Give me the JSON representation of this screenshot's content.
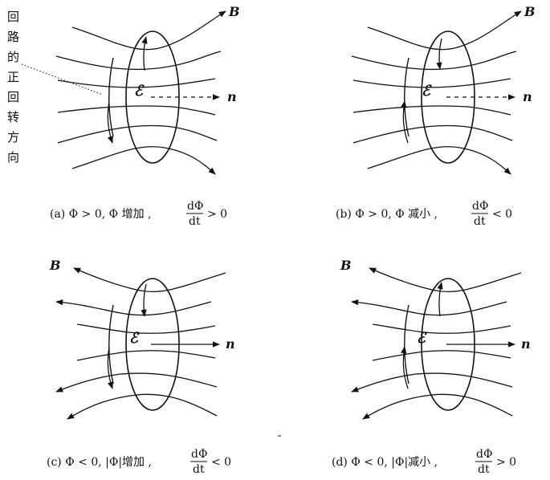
{
  "side_label": [
    "回",
    "路",
    "的",
    "正",
    "回",
    "转",
    "方",
    "向"
  ],
  "panels": [
    {
      "id": "a",
      "b_label": "B",
      "n_label": "n",
      "emf_label": "ℰ",
      "caption_prefix": "(a) Φ > 0, Φ 增加 ,",
      "frac_num": "dΦ",
      "frac_den": "dt",
      "caption_suffix": "> 0"
    },
    {
      "id": "b",
      "b_label": "B",
      "n_label": "n",
      "emf_label": "ℰ",
      "caption_prefix": "(b) Φ > 0, Φ 减小 ,",
      "frac_num": "dΦ",
      "frac_den": "dt",
      "caption_suffix": "< 0"
    },
    {
      "id": "c",
      "b_label": "B",
      "n_label": "n",
      "emf_label": "ℰ",
      "caption_prefix": "(c) Φ < 0, |Φ|增加 ,",
      "frac_num": "dΦ",
      "frac_den": "dt",
      "caption_suffix": "< 0"
    },
    {
      "id": "d",
      "b_label": "B",
      "n_label": "n",
      "emf_label": "ℰ",
      "caption_prefix": "(d) Φ < 0, |Φ|减小 ,",
      "frac_num": "dΦ",
      "frac_den": "dt",
      "caption_suffix": "> 0"
    }
  ]
}
